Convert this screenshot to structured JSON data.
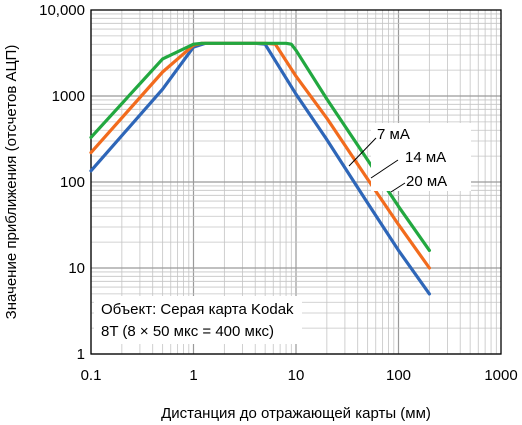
{
  "chart_data": {
    "type": "line",
    "xlabel": "Дистанция до отражающей карты (мм)",
    "ylabel": "Значение приближения (отсчетов АЦП)",
    "x_scale": "log",
    "y_scale": "log",
    "xlim": [
      0.1,
      1000
    ],
    "ylim": [
      1,
      10000
    ],
    "grid": true,
    "x_ticks": [
      "0.1",
      "1",
      "10",
      "100",
      "1000"
    ],
    "y_ticks": [
      "1",
      "10",
      "100",
      "1000",
      "10,000"
    ],
    "series": [
      {
        "name": "7 мА",
        "color": "#2e66b8",
        "points": [
          [
            0.1,
            135
          ],
          [
            0.5,
            1200
          ],
          [
            1,
            3700
          ],
          [
            1.3,
            4100
          ],
          [
            4,
            4100
          ],
          [
            5,
            4000
          ],
          [
            10,
            1050
          ],
          [
            20,
            310
          ],
          [
            50,
            57
          ],
          [
            100,
            16
          ],
          [
            200,
            5
          ]
        ]
      },
      {
        "name": "14 мА",
        "color": "#f26b1d",
        "points": [
          [
            0.1,
            220
          ],
          [
            0.5,
            1900
          ],
          [
            1,
            3900
          ],
          [
            1.2,
            4100
          ],
          [
            5,
            4100
          ],
          [
            6.3,
            4000
          ],
          [
            10,
            1700
          ],
          [
            20,
            550
          ],
          [
            50,
            108
          ],
          [
            100,
            32
          ],
          [
            200,
            10
          ]
        ]
      },
      {
        "name": "20 мА",
        "color": "#22a840",
        "points": [
          [
            0.1,
            330
          ],
          [
            0.5,
            2700
          ],
          [
            1,
            4000
          ],
          [
            1.2,
            4100
          ],
          [
            8,
            4100
          ],
          [
            9,
            4000
          ],
          [
            10,
            3400
          ],
          [
            20,
            920
          ],
          [
            50,
            180
          ],
          [
            100,
            52
          ],
          [
            200,
            16
          ]
        ]
      }
    ],
    "annotation": {
      "lines": [
        "Объект: Серая карта Kodak",
        "8T (8 × 50 мкс = 400 мкс)"
      ]
    }
  }
}
